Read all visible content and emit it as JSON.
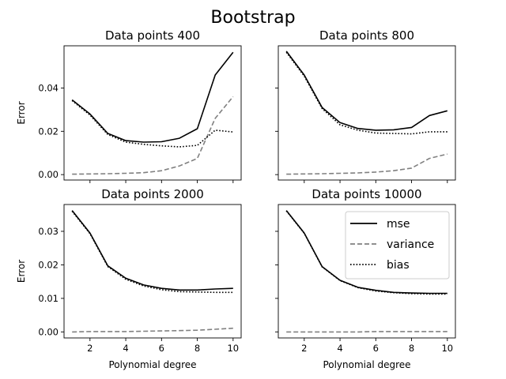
{
  "figure_title": "Bootstrap",
  "chart_data": [
    {
      "type": "line",
      "title": "Data points 400",
      "xlabel": "",
      "ylabel": "Error",
      "xlim": [
        0.55,
        10.45
      ],
      "ylim": [
        -0.0025,
        0.0595
      ],
      "xticks": [
        2,
        4,
        6,
        8,
        10
      ],
      "xtick_labels": [],
      "yticks": [
        0.0,
        0.02,
        0.04
      ],
      "ytick_labels": [
        "0.00",
        "0.02",
        "0.04"
      ],
      "x": [
        1,
        2,
        3,
        4,
        5,
        6,
        7,
        8,
        9,
        10
      ],
      "series": [
        {
          "name": "mse",
          "values": [
            0.0345,
            0.028,
            0.019,
            0.0157,
            0.015,
            0.0152,
            0.0168,
            0.0212,
            0.046,
            0.0565
          ]
        },
        {
          "name": "variance",
          "values": [
            0.0002,
            0.0003,
            0.0004,
            0.0006,
            0.0009,
            0.0018,
            0.004,
            0.0075,
            0.026,
            0.036
          ]
        },
        {
          "name": "bias",
          "values": [
            0.0342,
            0.0275,
            0.0185,
            0.015,
            0.014,
            0.0133,
            0.0128,
            0.0135,
            0.0205,
            0.0197
          ]
        }
      ],
      "legend": false
    },
    {
      "type": "line",
      "title": "Data points 800",
      "xlabel": "",
      "ylabel": "",
      "xlim": [
        0.55,
        10.45
      ],
      "ylim": [
        -0.0025,
        0.0595
      ],
      "xticks": [
        2,
        4,
        6,
        8,
        10
      ],
      "xtick_labels": [],
      "yticks": [
        0.0,
        0.02,
        0.04
      ],
      "ytick_labels": [],
      "x": [
        1,
        2,
        3,
        4,
        5,
        6,
        7,
        8,
        9,
        10
      ],
      "series": [
        {
          "name": "mse",
          "values": [
            0.057,
            0.046,
            0.031,
            0.024,
            0.0213,
            0.0205,
            0.0207,
            0.0218,
            0.0273,
            0.0295
          ]
        },
        {
          "name": "variance",
          "values": [
            0.0002,
            0.0003,
            0.0004,
            0.0006,
            0.0008,
            0.0012,
            0.0018,
            0.003,
            0.0075,
            0.0095
          ]
        },
        {
          "name": "bias",
          "values": [
            0.0565,
            0.0455,
            0.0305,
            0.023,
            0.0205,
            0.0192,
            0.019,
            0.0188,
            0.0198,
            0.0198
          ]
        }
      ],
      "legend": false
    },
    {
      "type": "line",
      "title": "Data points 2000",
      "xlabel": "Polynomial degree",
      "ylabel": "Error",
      "xlim": [
        0.55,
        10.45
      ],
      "ylim": [
        -0.0018,
        0.038
      ],
      "xticks": [
        2,
        4,
        6,
        8,
        10
      ],
      "xtick_labels": [
        "2",
        "4",
        "6",
        "8",
        "10"
      ],
      "yticks": [
        0.0,
        0.01,
        0.02,
        0.03
      ],
      "ytick_labels": [
        "0.00",
        "0.01",
        "0.02",
        "0.03"
      ],
      "x": [
        1,
        2,
        3,
        4,
        5,
        6,
        7,
        8,
        9,
        10
      ],
      "series": [
        {
          "name": "mse",
          "values": [
            0.0362,
            0.0295,
            0.0197,
            0.016,
            0.014,
            0.013,
            0.0125,
            0.0125,
            0.0128,
            0.013
          ]
        },
        {
          "name": "variance",
          "values": [
            0.0,
            0.0001,
            0.0001,
            0.0001,
            0.0002,
            0.0003,
            0.0004,
            0.0005,
            0.0008,
            0.0011
          ]
        },
        {
          "name": "bias",
          "values": [
            0.036,
            0.0293,
            0.0195,
            0.0157,
            0.0137,
            0.0126,
            0.012,
            0.0119,
            0.0118,
            0.0118
          ]
        }
      ],
      "legend": false
    },
    {
      "type": "line",
      "title": "Data points 10000",
      "xlabel": "Polynomial degree",
      "ylabel": "",
      "xlim": [
        0.55,
        10.45
      ],
      "ylim": [
        -0.0018,
        0.038
      ],
      "xticks": [
        2,
        4,
        6,
        8,
        10
      ],
      "xtick_labels": [
        "2",
        "4",
        "6",
        "8",
        "10"
      ],
      "yticks": [
        0.0,
        0.01,
        0.02,
        0.03
      ],
      "ytick_labels": [],
      "x": [
        1,
        2,
        3,
        4,
        5,
        6,
        7,
        8,
        9,
        10
      ],
      "series": [
        {
          "name": "mse",
          "values": [
            0.0362,
            0.0295,
            0.0195,
            0.0154,
            0.0133,
            0.0124,
            0.0118,
            0.0116,
            0.0115,
            0.0115
          ]
        },
        {
          "name": "variance",
          "values": [
            0.0,
            0.0,
            0.0,
            0.0,
            0.0,
            0.0001,
            0.0001,
            0.0001,
            0.0001,
            0.0001
          ]
        },
        {
          "name": "bias",
          "values": [
            0.0361,
            0.0294,
            0.0194,
            0.0153,
            0.0132,
            0.0122,
            0.0117,
            0.0114,
            0.0113,
            0.0113
          ]
        }
      ],
      "legend": true,
      "legend_position": "top-right"
    }
  ],
  "styles": {
    "mse": {
      "color": "#000000",
      "dash": ""
    },
    "variance": {
      "color": "#808080",
      "dash": "6,3"
    },
    "bias": {
      "color": "#000000",
      "dash": "1.6,2.2"
    }
  }
}
